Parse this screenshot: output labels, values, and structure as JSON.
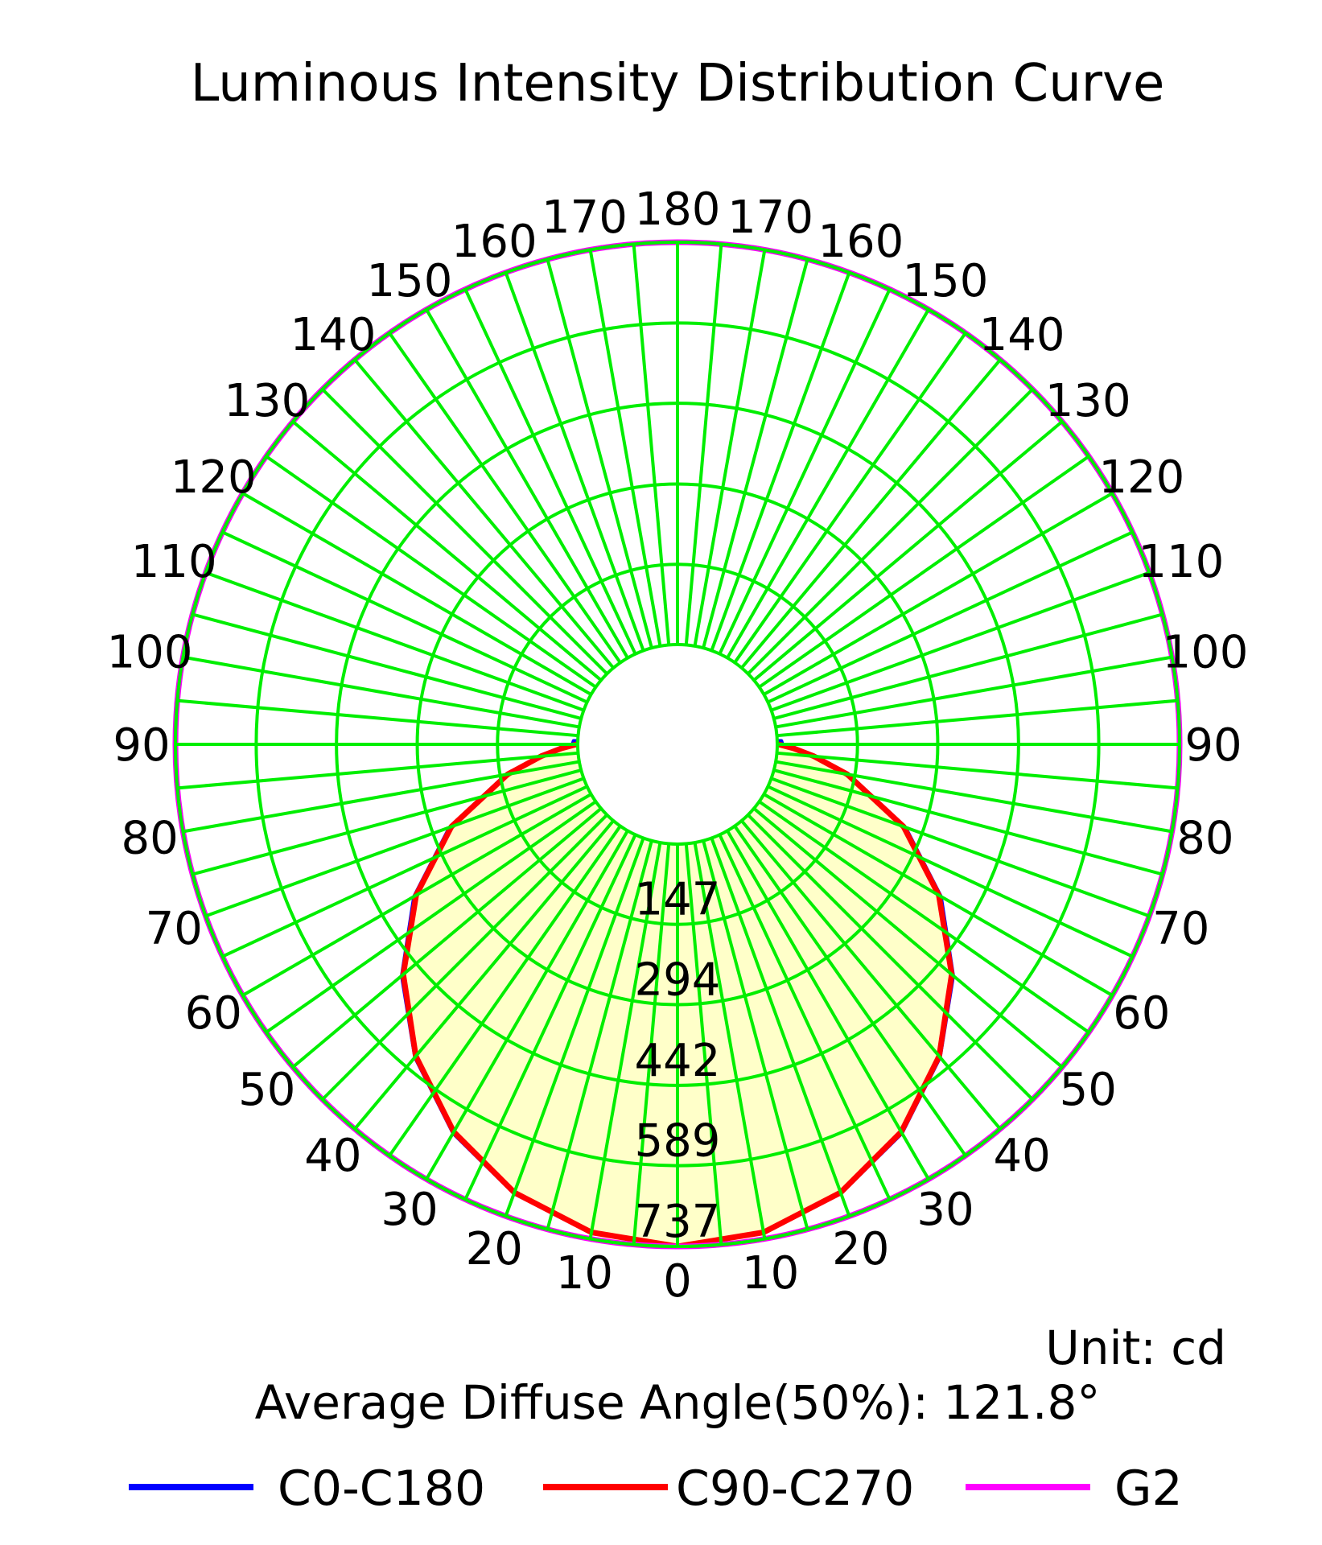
{
  "chart_data": {
    "type": "polar",
    "title": "Luminous Intensity Distribution Curve",
    "unit_label": "Unit: cd",
    "note": "Average Diffuse Angle(50%): 121.8°",
    "radial_ticks": [
      147,
      294,
      442,
      589,
      737
    ],
    "r_max": 737,
    "angle_ticks_left": [
      0,
      10,
      20,
      30,
      40,
      50,
      60,
      70,
      80,
      90,
      100,
      110,
      120,
      130,
      140,
      150,
      160,
      170,
      180
    ],
    "angle_ticks_right": [
      10,
      20,
      30,
      40,
      50,
      60,
      70,
      80,
      90,
      100,
      110,
      120,
      130,
      140,
      150,
      160,
      170
    ],
    "angle_labels": {
      "0": "0",
      "10": "10",
      "20": "20",
      "30": "30",
      "40": "40",
      "50": "50",
      "60": "60",
      "70": "70",
      "80": "80",
      "90": "90",
      "100": "100",
      "110": "110",
      "120": "120",
      "130": "130",
      "140": "140",
      "150": "150",
      "160": "160",
      "170": "170",
      "180": "180"
    },
    "grid": true,
    "legend_position": "bottom",
    "series": [
      {
        "name": "C0-C180",
        "color": "#0000ff",
        "fill": "#ffffc0",
        "gamma": [
          0,
          10,
          20,
          30,
          40,
          50,
          60,
          70,
          80,
          85,
          88,
          90,
          92
        ],
        "intensity": [
          737,
          726,
          693,
          640,
          566,
          477,
          375,
          262,
          137,
          72,
          35,
          10,
          8
        ]
      },
      {
        "name": "C90-C270",
        "color": "#ff0000",
        "gamma": [
          0,
          10,
          20,
          30,
          40,
          50,
          60,
          70,
          80,
          85,
          88,
          90
        ],
        "intensity": [
          737,
          725,
          691,
          637,
          563,
          473,
          370,
          258,
          133,
          68,
          30,
          2
        ]
      },
      {
        "name": "G2",
        "color": "#ff00ff",
        "gamma": [
          0,
          180
        ],
        "intensity": [
          737,
          737
        ]
      }
    ]
  }
}
